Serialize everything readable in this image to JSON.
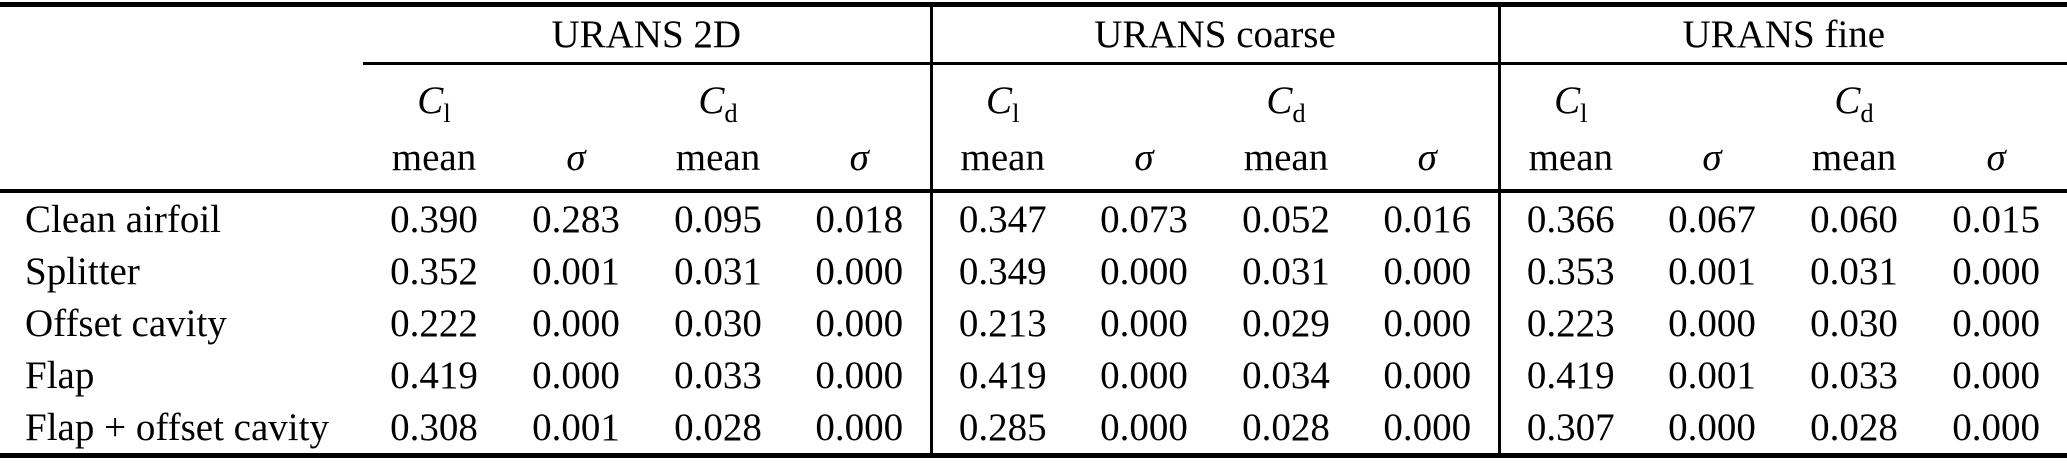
{
  "colors": {
    "background": "#ffffff",
    "text": "#000000",
    "rules": "#000000"
  },
  "table": {
    "groups": [
      {
        "label": "URANS 2D"
      },
      {
        "label": "URANS coarse"
      },
      {
        "label": "URANS fine"
      }
    ],
    "headers": {
      "cl": {
        "base": "C",
        "sub": "l"
      },
      "cd": {
        "base": "C",
        "sub": "d"
      },
      "mean": "mean",
      "sigma": "σ"
    },
    "rows": [
      {
        "label": "Clean airfoil",
        "values": [
          "0.390",
          "0.283",
          "0.095",
          "0.018",
          "0.347",
          "0.073",
          "0.052",
          "0.016",
          "0.366",
          "0.067",
          "0.060",
          "0.015"
        ]
      },
      {
        "label": "Splitter",
        "values": [
          "0.352",
          "0.001",
          "0.031",
          "0.000",
          "0.349",
          "0.000",
          "0.031",
          "0.000",
          "0.353",
          "0.001",
          "0.031",
          "0.000"
        ]
      },
      {
        "label": "Offset cavity",
        "values": [
          "0.222",
          "0.000",
          "0.030",
          "0.000",
          "0.213",
          "0.000",
          "0.029",
          "0.000",
          "0.223",
          "0.000",
          "0.030",
          "0.000"
        ]
      },
      {
        "label": "Flap",
        "values": [
          "0.419",
          "0.000",
          "0.033",
          "0.000",
          "0.419",
          "0.000",
          "0.034",
          "0.000",
          "0.419",
          "0.001",
          "0.033",
          "0.000"
        ]
      },
      {
        "label": "Flap + offset cavity",
        "values": [
          "0.308",
          "0.001",
          "0.028",
          "0.000",
          "0.285",
          "0.000",
          "0.028",
          "0.000",
          "0.307",
          "0.000",
          "0.028",
          "0.000"
        ]
      }
    ]
  }
}
